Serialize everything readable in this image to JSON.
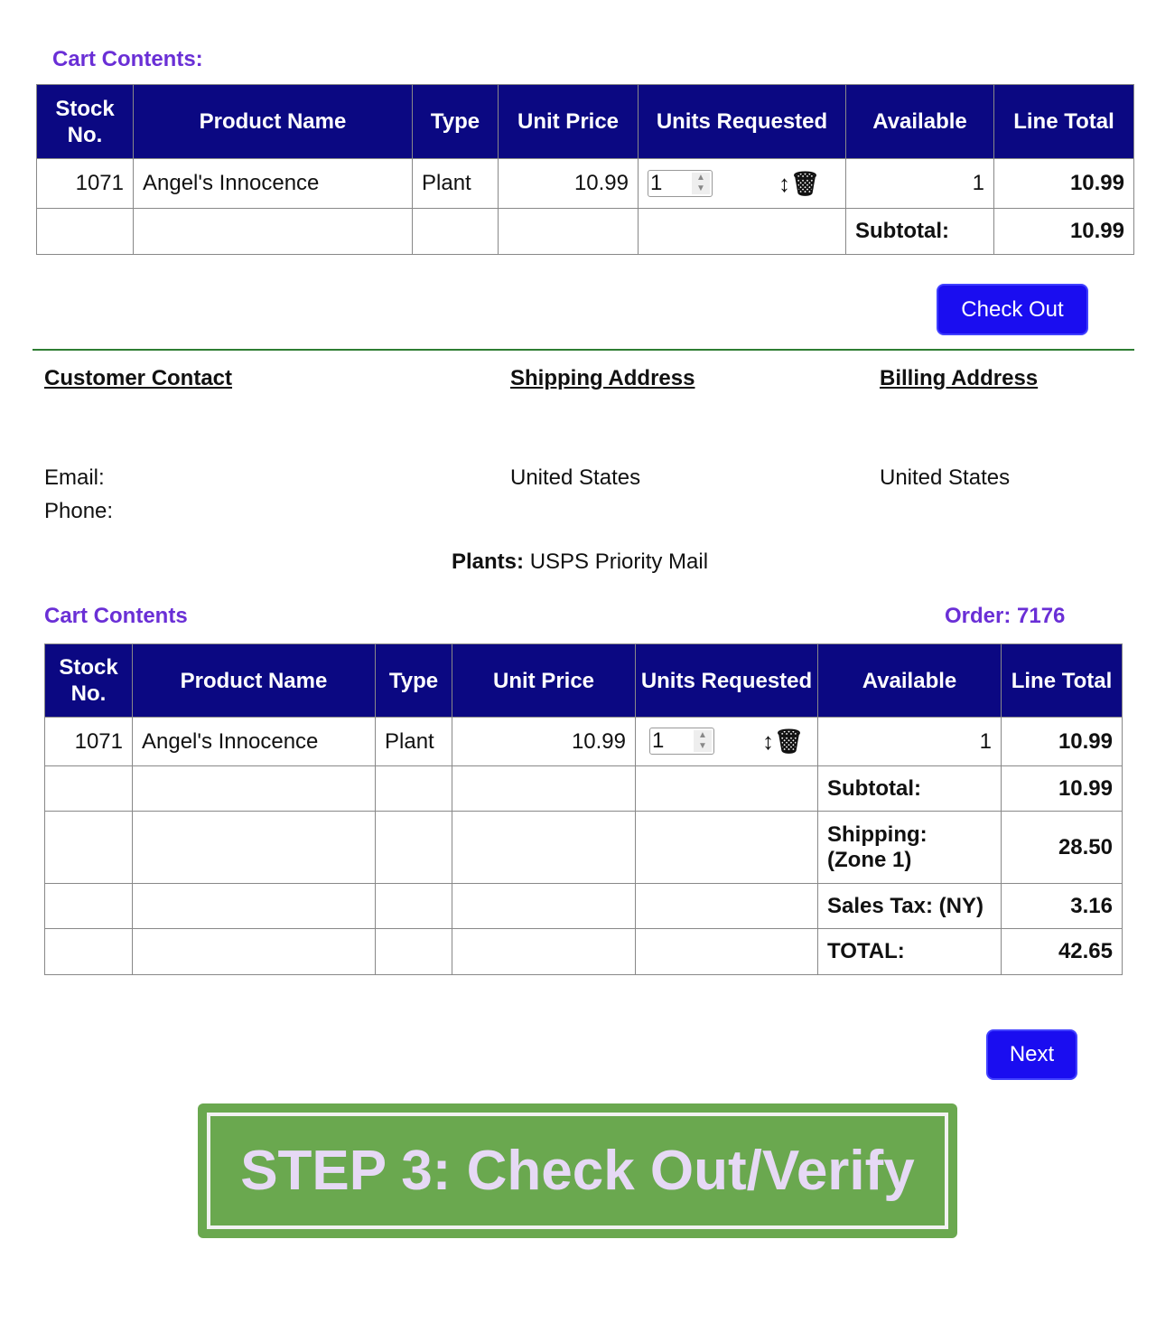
{
  "cart1": {
    "title": "Cart Contents:",
    "headers": [
      "Stock No.",
      "Product Name",
      "Type",
      "Unit Price",
      "Units Requested",
      "Available",
      "Line Total"
    ],
    "row": {
      "stock": "1071",
      "name": "Angel's Innocence",
      "type": "Plant",
      "price": "10.99",
      "qty": "1",
      "available": "1",
      "total": "10.99"
    },
    "subtotal_label": "Subtotal:",
    "subtotal": "10.99"
  },
  "checkout_label": "Check Out",
  "contact": {
    "customer": "Customer Contact",
    "shipping": "Shipping Address",
    "billing": "Billing Address",
    "email_label": "Email:",
    "phone_label": "Phone:",
    "ship_country": "United States",
    "bill_country": "United States"
  },
  "shipping_method": {
    "label": "Plants:",
    "value": "USPS Priority Mail"
  },
  "cart2": {
    "title": "Cart Contents",
    "order": "Order: 7176",
    "headers": [
      "Stock No.",
      "Product Name",
      "Type",
      "Unit Price",
      "Units Requested",
      "Available",
      "Line Total"
    ],
    "row": {
      "stock": "1071",
      "name": "Angel's Innocence",
      "type": "Plant",
      "price": "10.99",
      "qty": "1",
      "available": "1",
      "total": "10.99"
    },
    "summary": [
      {
        "label": "Subtotal:",
        "value": "10.99"
      },
      {
        "label": "Shipping: (Zone 1)",
        "value": "28.50"
      },
      {
        "label": "Sales Tax: (NY)",
        "value": "3.16"
      },
      {
        "label": "TOTAL:",
        "value": "42.65"
      }
    ]
  },
  "next_label": "Next",
  "banner": "STEP 3: Check Out/Verify",
  "colors": {
    "header": "#0b0882",
    "accent": "#6a2fd6",
    "button": "#1a0df0",
    "banner": "#6aa84f",
    "banner_text": "#e6d9f5"
  }
}
